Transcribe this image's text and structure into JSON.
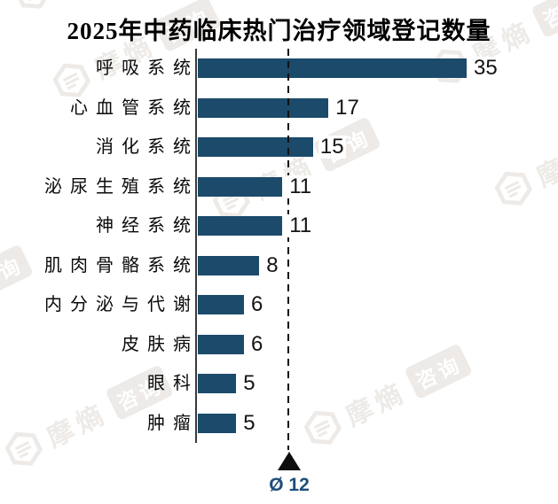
{
  "title": "2025年中药临床热门治疗领域登记数量",
  "chart_data": {
    "type": "bar",
    "orientation": "horizontal",
    "title": "2025年中药临床热门治疗领域登记数量",
    "categories": [
      "呼吸系统",
      "心血管系统",
      "消化系统",
      "泌尿生殖系统",
      "神经系统",
      "肌肉骨骼系统",
      "内分泌与代谢",
      "皮肤病",
      "眼科",
      "肿瘤"
    ],
    "values": [
      35,
      17,
      15,
      11,
      11,
      8,
      6,
      6,
      5,
      5
    ],
    "value_labels_shown": true,
    "average_line": {
      "value": 12,
      "label": "Ø 12",
      "style": "dashed-vertical-with-triangle-marker"
    },
    "bar_color": "#1B4A6B",
    "average_label_color": "#1F4E79",
    "axis_line_color": "#3a3a3a",
    "xlim": [
      0,
      40
    ],
    "grid": false,
    "legend": false
  },
  "watermark": {
    "brand": "摩熵",
    "badge": "咨询"
  }
}
